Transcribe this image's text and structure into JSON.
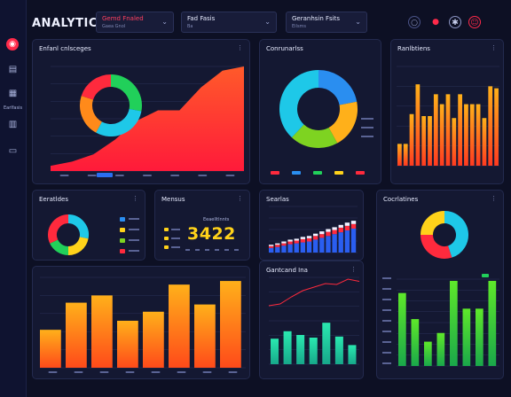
{
  "app": {
    "title": "ANALYTICS"
  },
  "header": {
    "dropdowns": [
      {
        "label": "Gemd Fnaled",
        "sub": "Gaea Gnol"
      },
      {
        "label": "Fad Fasis",
        "sub": "Ba"
      },
      {
        "label": "Geranhsin Fsits",
        "sub": "Eilsms"
      }
    ]
  },
  "sidebar": {
    "items": [
      {
        "label": "Earlfasis"
      }
    ]
  },
  "panels": {
    "overview": {
      "title": "Enfanl cnlsceges"
    },
    "compare": {
      "title": "Conrunarlss"
    },
    "trends": {
      "title": "Ranlbtiens"
    },
    "donut_small": {
      "title": "Eeratldes"
    },
    "metric": {
      "title": "Mensus",
      "caption": "Eeaelltlnnts",
      "value": "3422"
    },
    "stacked": {
      "title": "Searlas"
    },
    "customers": {
      "title": "Cocrlatines"
    },
    "bars_big": {
      "title": ""
    },
    "line_combo": {
      "title": "Gantcand Ina"
    }
  },
  "colors": {
    "background": "#0d1024",
    "panel": "#141832",
    "accent_red": "#ff2a3d",
    "accent_orange": "#ff8a1a",
    "accent_yellow": "#ffd21a",
    "accent_green": "#21d05a",
    "accent_cyan": "#1ec8e8",
    "accent_blue": "#2a5ef0"
  },
  "icons": [
    "logo-icon",
    "chart-icon",
    "grid-icon",
    "list-icon",
    "search-icon",
    "bell-icon",
    "gear-icon",
    "user-icon"
  ],
  "chart_data": [
    {
      "id": "overview-area",
      "type": "area",
      "values": [
        5,
        9,
        16,
        30,
        48,
        58,
        58,
        80,
        96,
        100
      ],
      "ylim": [
        0,
        100
      ],
      "donut": {
        "type": "pie",
        "values": [
          28,
          30,
          22,
          20
        ],
        "colors": [
          "#21d05a",
          "#1ec8e8",
          "#ff8a1a",
          "#ff2a3d"
        ]
      }
    },
    {
      "id": "compare-donut",
      "type": "pie",
      "values": [
        22,
        20,
        20,
        38
      ],
      "colors": [
        "#2a8ef0",
        "#ffb01a",
        "#7ed321",
        "#1ec8e8"
      ]
    },
    {
      "id": "trend-bars",
      "type": "bar",
      "values": [
        22,
        22,
        52,
        82,
        50,
        50,
        72,
        62,
        72,
        48,
        72,
        62,
        62,
        62,
        48,
        80,
        78
      ],
      "ylim": [
        0,
        100
      ]
    },
    {
      "id": "small-donut",
      "type": "pie",
      "values": [
        28,
        22,
        18,
        32
      ],
      "colors": [
        "#1ec8e8",
        "#ffd21a",
        "#21d05a",
        "#ff2a3d"
      ]
    },
    {
      "id": "stacked-bars",
      "type": "bar",
      "series": [
        {
          "values": [
            10,
            12,
            15,
            18,
            20,
            22,
            24,
            28,
            32,
            36,
            40,
            44,
            48,
            52
          ]
        },
        {
          "values": [
            4,
            5,
            5,
            6,
            6,
            7,
            7,
            8,
            8,
            9,
            9,
            10,
            10,
            10
          ]
        },
        {
          "values": [
            3,
            3,
            4,
            4,
            4,
            5,
            5,
            5,
            6,
            6,
            6,
            6,
            7,
            7
          ]
        }
      ],
      "ylim": [
        0,
        100
      ]
    },
    {
      "id": "customers-donut",
      "type": "pie",
      "values": [
        45,
        30,
        25
      ],
      "colors": [
        "#1ec8e8",
        "#ff2a3d",
        "#ffd21a"
      ]
    },
    {
      "id": "big-bars",
      "type": "bar",
      "values": [
        42,
        72,
        80,
        52,
        62,
        92,
        70,
        96
      ],
      "ylim": [
        0,
        100
      ]
    },
    {
      "id": "line-combo",
      "type": "bar",
      "values": [
        48,
        62,
        55,
        50,
        78,
        52,
        36
      ],
      "line": [
        40,
        44,
        60,
        74,
        82,
        90,
        88,
        100,
        95
      ],
      "ylim": [
        0,
        100
      ]
    },
    {
      "id": "green-bars",
      "type": "bar",
      "values": [
        84,
        54,
        28,
        38,
        98,
        66,
        66,
        98
      ],
      "ylim": [
        0,
        100
      ]
    }
  ]
}
